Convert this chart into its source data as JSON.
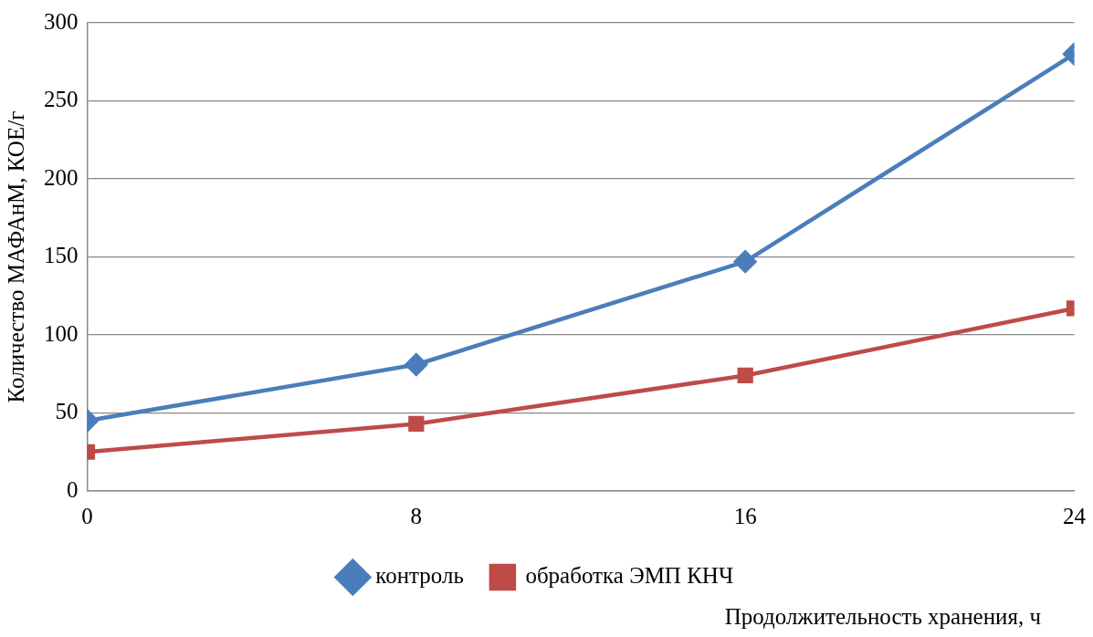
{
  "chart_data": {
    "type": "line",
    "xlabel": "Продолжительность хранения, ч",
    "ylabel": "Количество МАФАнМ, КОЕ/г",
    "x": [
      0,
      8,
      16,
      24
    ],
    "xlim": [
      0,
      24
    ],
    "xticks": [
      0,
      8,
      16,
      24
    ],
    "ylim": [
      0,
      300
    ],
    "yticks": [
      0,
      50,
      100,
      150,
      200,
      250,
      300
    ],
    "grid": "y",
    "legend": "bottom",
    "line_style": "solid",
    "series": [
      {
        "name": "контроль",
        "color": "#4a7ebb",
        "marker": "diamond",
        "values": [
          45,
          81,
          147,
          280
        ]
      },
      {
        "name": "обработка ЭМП КНЧ",
        "color": "#be4b48",
        "marker": "square",
        "values": [
          25,
          43,
          74,
          117
        ]
      }
    ]
  }
}
